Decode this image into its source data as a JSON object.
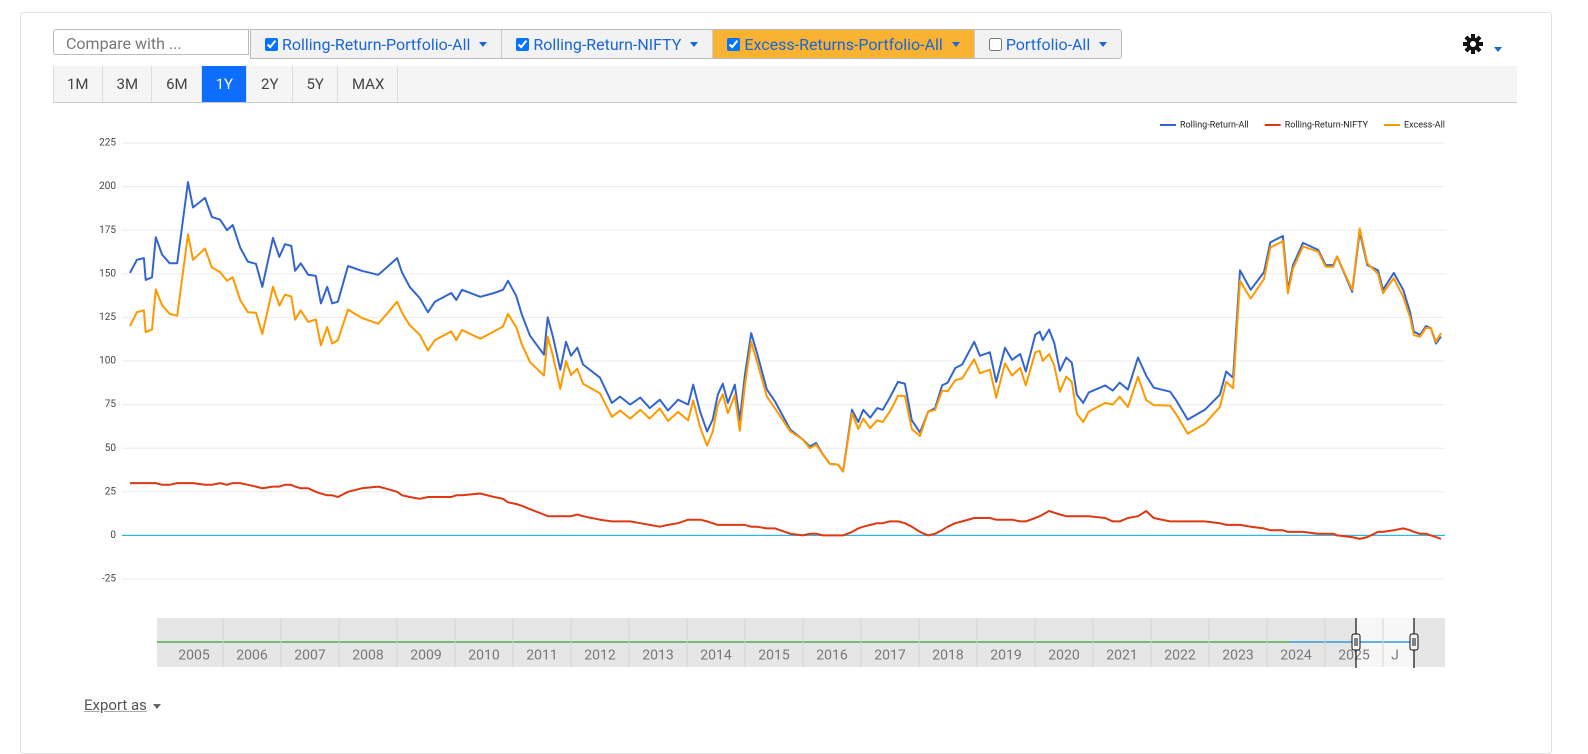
{
  "toolbar": {
    "compare_placeholder": "Compare with ...",
    "tabs": [
      {
        "label": "Rolling-Return-Portfolio-All",
        "checked": true,
        "highlight": false
      },
      {
        "label": "Rolling-Return-NIFTY",
        "checked": true,
        "highlight": false
      },
      {
        "label": "Excess-Returns-Portfolio-All",
        "checked": true,
        "highlight": true
      },
      {
        "label": "Portfolio-All",
        "checked": false,
        "highlight": false
      }
    ]
  },
  "range_buttons": [
    {
      "label": "1M",
      "active": false
    },
    {
      "label": "3M",
      "active": false
    },
    {
      "label": "6M",
      "active": false
    },
    {
      "label": "1Y",
      "active": true
    },
    {
      "label": "2Y",
      "active": false
    },
    {
      "label": "5Y",
      "active": false
    },
    {
      "label": "MAX",
      "active": false
    }
  ],
  "navigator": {
    "labels": [
      "2005",
      "2006",
      "2007",
      "2008",
      "2009",
      "2010",
      "2011",
      "2012",
      "2013",
      "2014",
      "2015",
      "2016",
      "2017",
      "2018",
      "2019",
      "2020",
      "2021",
      "2022",
      "2023",
      "2024",
      "2025",
      "J"
    ]
  },
  "export_label": "Export as",
  "chart_data": {
    "type": "line",
    "grid": true,
    "legend": "top-right",
    "zero_line_color": "#35b6df",
    "ylim": [
      -25,
      225
    ],
    "yticks": [
      -25,
      0,
      25,
      50,
      75,
      100,
      125,
      150,
      175,
      200,
      225
    ],
    "xlim": [
      2004.6,
      2025.41
    ],
    "x": [
      2004.6,
      2004.71,
      2004.82,
      2004.85,
      2004.95,
      2005.01,
      2005.11,
      2005.23,
      2005.35,
      2005.52,
      2005.6,
      2005.79,
      2005.9,
      2006.03,
      2006.14,
      2006.23,
      2006.35,
      2006.47,
      2006.6,
      2006.7,
      2006.87,
      2006.97,
      2007.06,
      2007.16,
      2007.22,
      2007.31,
      2007.43,
      2007.55,
      2007.63,
      2007.73,
      2007.81,
      2007.9,
      2008.06,
      2008.28,
      2008.54,
      2008.65,
      2008.84,
      2008.92,
      2009.04,
      2009.2,
      2009.33,
      2009.44,
      2009.7,
      2009.78,
      2009.87,
      2010.16,
      2010.38,
      2010.52,
      2010.6,
      2010.73,
      2010.82,
      2010.95,
      2011.17,
      2011.23,
      2011.31,
      2011.43,
      2011.52,
      2011.6,
      2011.7,
      2011.79,
      2012.06,
      2012.25,
      2012.38,
      2012.54,
      2012.7,
      2012.85,
      2013.01,
      2013.14,
      2013.3,
      2013.46,
      2013.54,
      2013.65,
      2013.76,
      2013.85,
      2013.93,
      2014.01,
      2014.09,
      2014.2,
      2014.28,
      2014.36,
      2014.46,
      2014.55,
      2014.71,
      2014.84,
      2015.08,
      2015.28,
      2015.39,
      2015.49,
      2015.6,
      2015.71,
      2015.84,
      2015.92,
      2016.06,
      2016.16,
      2016.24,
      2016.35,
      2016.46,
      2016.55,
      2016.66,
      2016.79,
      2016.9,
      2017.01,
      2017.14,
      2017.27,
      2017.38,
      2017.49,
      2017.58,
      2017.7,
      2017.81,
      2018.0,
      2018.09,
      2018.25,
      2018.35,
      2018.49,
      2018.6,
      2018.73,
      2018.82,
      2018.97,
      2019.04,
      2019.09,
      2019.19,
      2019.27,
      2019.36,
      2019.46,
      2019.55,
      2019.63,
      2019.73,
      2019.82,
      2020.08,
      2020.2,
      2020.31,
      2020.44,
      2020.6,
      2020.73,
      2020.85,
      2021.11,
      2021.2,
      2021.39,
      2021.66,
      2021.9,
      2022.0,
      2022.11,
      2022.22,
      2022.39,
      2022.6,
      2022.7,
      2022.9,
      2022.98,
      2023.06,
      2023.22,
      2023.46,
      2023.58,
      2023.7,
      2023.76,
      2024.0,
      2024.12,
      2024.24,
      2024.41,
      2024.49,
      2024.66,
      2024.81,
      2024.92,
      2024.98,
      2025.08,
      2025.17,
      2025.25,
      2025.33,
      2025.41
    ],
    "series": [
      {
        "name": "Rolling-Return-All",
        "color": "#3366cc",
        "values": [
          150.5,
          158,
          159,
          146.5,
          148,
          171,
          161,
          156,
          156,
          202.6,
          188,
          193.5,
          182.6,
          181,
          175,
          178,
          165,
          157,
          155.7,
          142.5,
          170.6,
          159.7,
          167,
          166,
          151.7,
          156,
          149.4,
          148.8,
          133,
          142.5,
          133,
          134,
          154.5,
          151.7,
          149.4,
          152.8,
          159,
          150.5,
          142.5,
          136,
          128,
          134,
          139,
          135,
          140.8,
          136.8,
          139,
          140.8,
          146,
          137.4,
          126.5,
          114.5,
          103.6,
          125,
          114.5,
          95,
          111,
          103,
          107.6,
          98,
          90.4,
          76,
          79.6,
          75,
          79,
          73,
          77.8,
          71.6,
          77.8,
          75,
          86.4,
          71,
          59.5,
          66.4,
          80.7,
          87,
          76,
          86.4,
          66,
          92,
          116,
          105,
          83.6,
          76.7,
          60.7,
          55,
          51,
          53,
          46.4,
          41,
          40.6,
          36.6,
          72,
          65,
          72,
          67.5,
          73,
          72,
          79,
          88,
          87,
          66,
          59,
          71,
          73,
          86,
          87.6,
          96,
          98,
          111,
          103,
          105,
          88,
          107.6,
          100.7,
          104,
          94,
          115,
          116.8,
          112,
          118,
          110.5,
          94.4,
          102,
          99,
          80.7,
          76,
          82,
          86,
          83,
          87.6,
          83.6,
          102,
          91.6,
          84.7,
          82.4,
          77.8,
          66.4,
          72,
          80.7,
          94,
          90.4,
          152,
          140.8,
          151,
          168,
          171.7,
          140.8,
          155,
          167.7,
          163.7,
          155,
          155,
          160,
          139.7,
          174,
          155,
          152,
          140.8,
          150.5,
          140.8,
          128,
          116.8,
          115,
          120,
          118.8,
          110,
          114
        ]
      },
      {
        "name": "Rolling-Return-NIFTY",
        "color": "#dc3912",
        "values": [
          30,
          30,
          30,
          30,
          30,
          30,
          29,
          29,
          30,
          30,
          30,
          29,
          29,
          30,
          29,
          30,
          30,
          29,
          28,
          27,
          28,
          28,
          29,
          29,
          28,
          27,
          27,
          25,
          24,
          23,
          23,
          22,
          25,
          27,
          28,
          27,
          25,
          23,
          22,
          21,
          22,
          22,
          22,
          23,
          23,
          24,
          22,
          21,
          19,
          18,
          17,
          15,
          12,
          11,
          11,
          11,
          11,
          11,
          12,
          11,
          9,
          8,
          8,
          8,
          7,
          6,
          5,
          6,
          7,
          9,
          9,
          9,
          8,
          7,
          6,
          6,
          6,
          6,
          6,
          6,
          5,
          5,
          4,
          4,
          1,
          0,
          1,
          1,
          0,
          0,
          0,
          0,
          2,
          4,
          5,
          6,
          7,
          7,
          8,
          8,
          7,
          5,
          2,
          0,
          1,
          3,
          5,
          7,
          8,
          10,
          10,
          10,
          9,
          9,
          9,
          8,
          8,
          10,
          11,
          12,
          14,
          13,
          12,
          11,
          11,
          11,
          11,
          11,
          10,
          8,
          8,
          10,
          11,
          14,
          10,
          8,
          8,
          8,
          8,
          7,
          6,
          6,
          6,
          5,
          4,
          3,
          3,
          2,
          2,
          2,
          1,
          1,
          1,
          0,
          -1,
          -2,
          -1,
          2,
          2,
          3,
          4,
          3,
          2,
          1,
          1,
          0,
          -1,
          -2
        ]
      },
      {
        "name": "Excess-All",
        "color": "#ff9900",
        "values": [
          120,
          128,
          129,
          116.5,
          118,
          141,
          132,
          127,
          126,
          172.6,
          158,
          164.5,
          153.6,
          151,
          146,
          148,
          135,
          128,
          127.7,
          115.5,
          142.6,
          131.7,
          138,
          137,
          123.7,
          129,
          122.4,
          123.8,
          109,
          119.5,
          110,
          112,
          129.5,
          124.7,
          121.4,
          125.8,
          134,
          127.5,
          120.5,
          115,
          106,
          112,
          117,
          112,
          117.8,
          112.8,
          117,
          119.8,
          127,
          119.4,
          109.5,
          99.5,
          91.6,
          114,
          103.5,
          84,
          100,
          92,
          95.6,
          87,
          81.4,
          68,
          71.6,
          67,
          72,
          67,
          72.8,
          65.6,
          70.8,
          66,
          77.4,
          62,
          51.5,
          59.4,
          74.7,
          81,
          70,
          80.4,
          60,
          86,
          111,
          100,
          79.6,
          72.7,
          59.7,
          55,
          50,
          52,
          46.4,
          41,
          40.6,
          36.6,
          70,
          61,
          67,
          61.5,
          66,
          65,
          71,
          80,
          80,
          61,
          57,
          71,
          72,
          83,
          82.6,
          89,
          90,
          101,
          93,
          95,
          79,
          98.6,
          91.7,
          96,
          86,
          105,
          105.8,
          100,
          104,
          97.5,
          82.4,
          91,
          88,
          69.7,
          65,
          71,
          76,
          75,
          79.6,
          73.6,
          91,
          77.6,
          74.7,
          74.4,
          69.8,
          58.4,
          64,
          73.7,
          88,
          84.4,
          146,
          135.8,
          147,
          165,
          168.7,
          138.8,
          153,
          165.7,
          162.7,
          154,
          154,
          160,
          140.7,
          176,
          156,
          150,
          138.8,
          147.5,
          136.8,
          125,
          114.8,
          114,
          119,
          118.8,
          111,
          116
        ]
      }
    ]
  }
}
